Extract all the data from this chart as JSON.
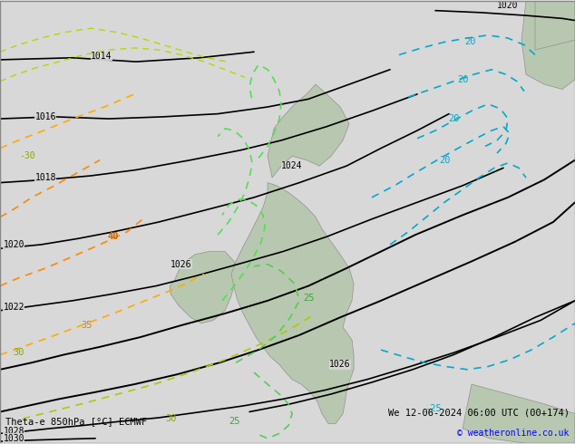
{
  "title_left": "Theta-e 850hPa [°C] ECMWF",
  "title_right": "We 12-06-2024 06:00 UTC (00+174)",
  "copyright": "© weatheronline.co.uk",
  "bg_color": "#d8d8d8",
  "land_color": "#b8c8b0",
  "fig_width": 6.34,
  "fig_height": 4.9,
  "dpi": 100,
  "font_size_labels": 7,
  "font_size_title": 7.5,
  "font_size_copyright": 7
}
